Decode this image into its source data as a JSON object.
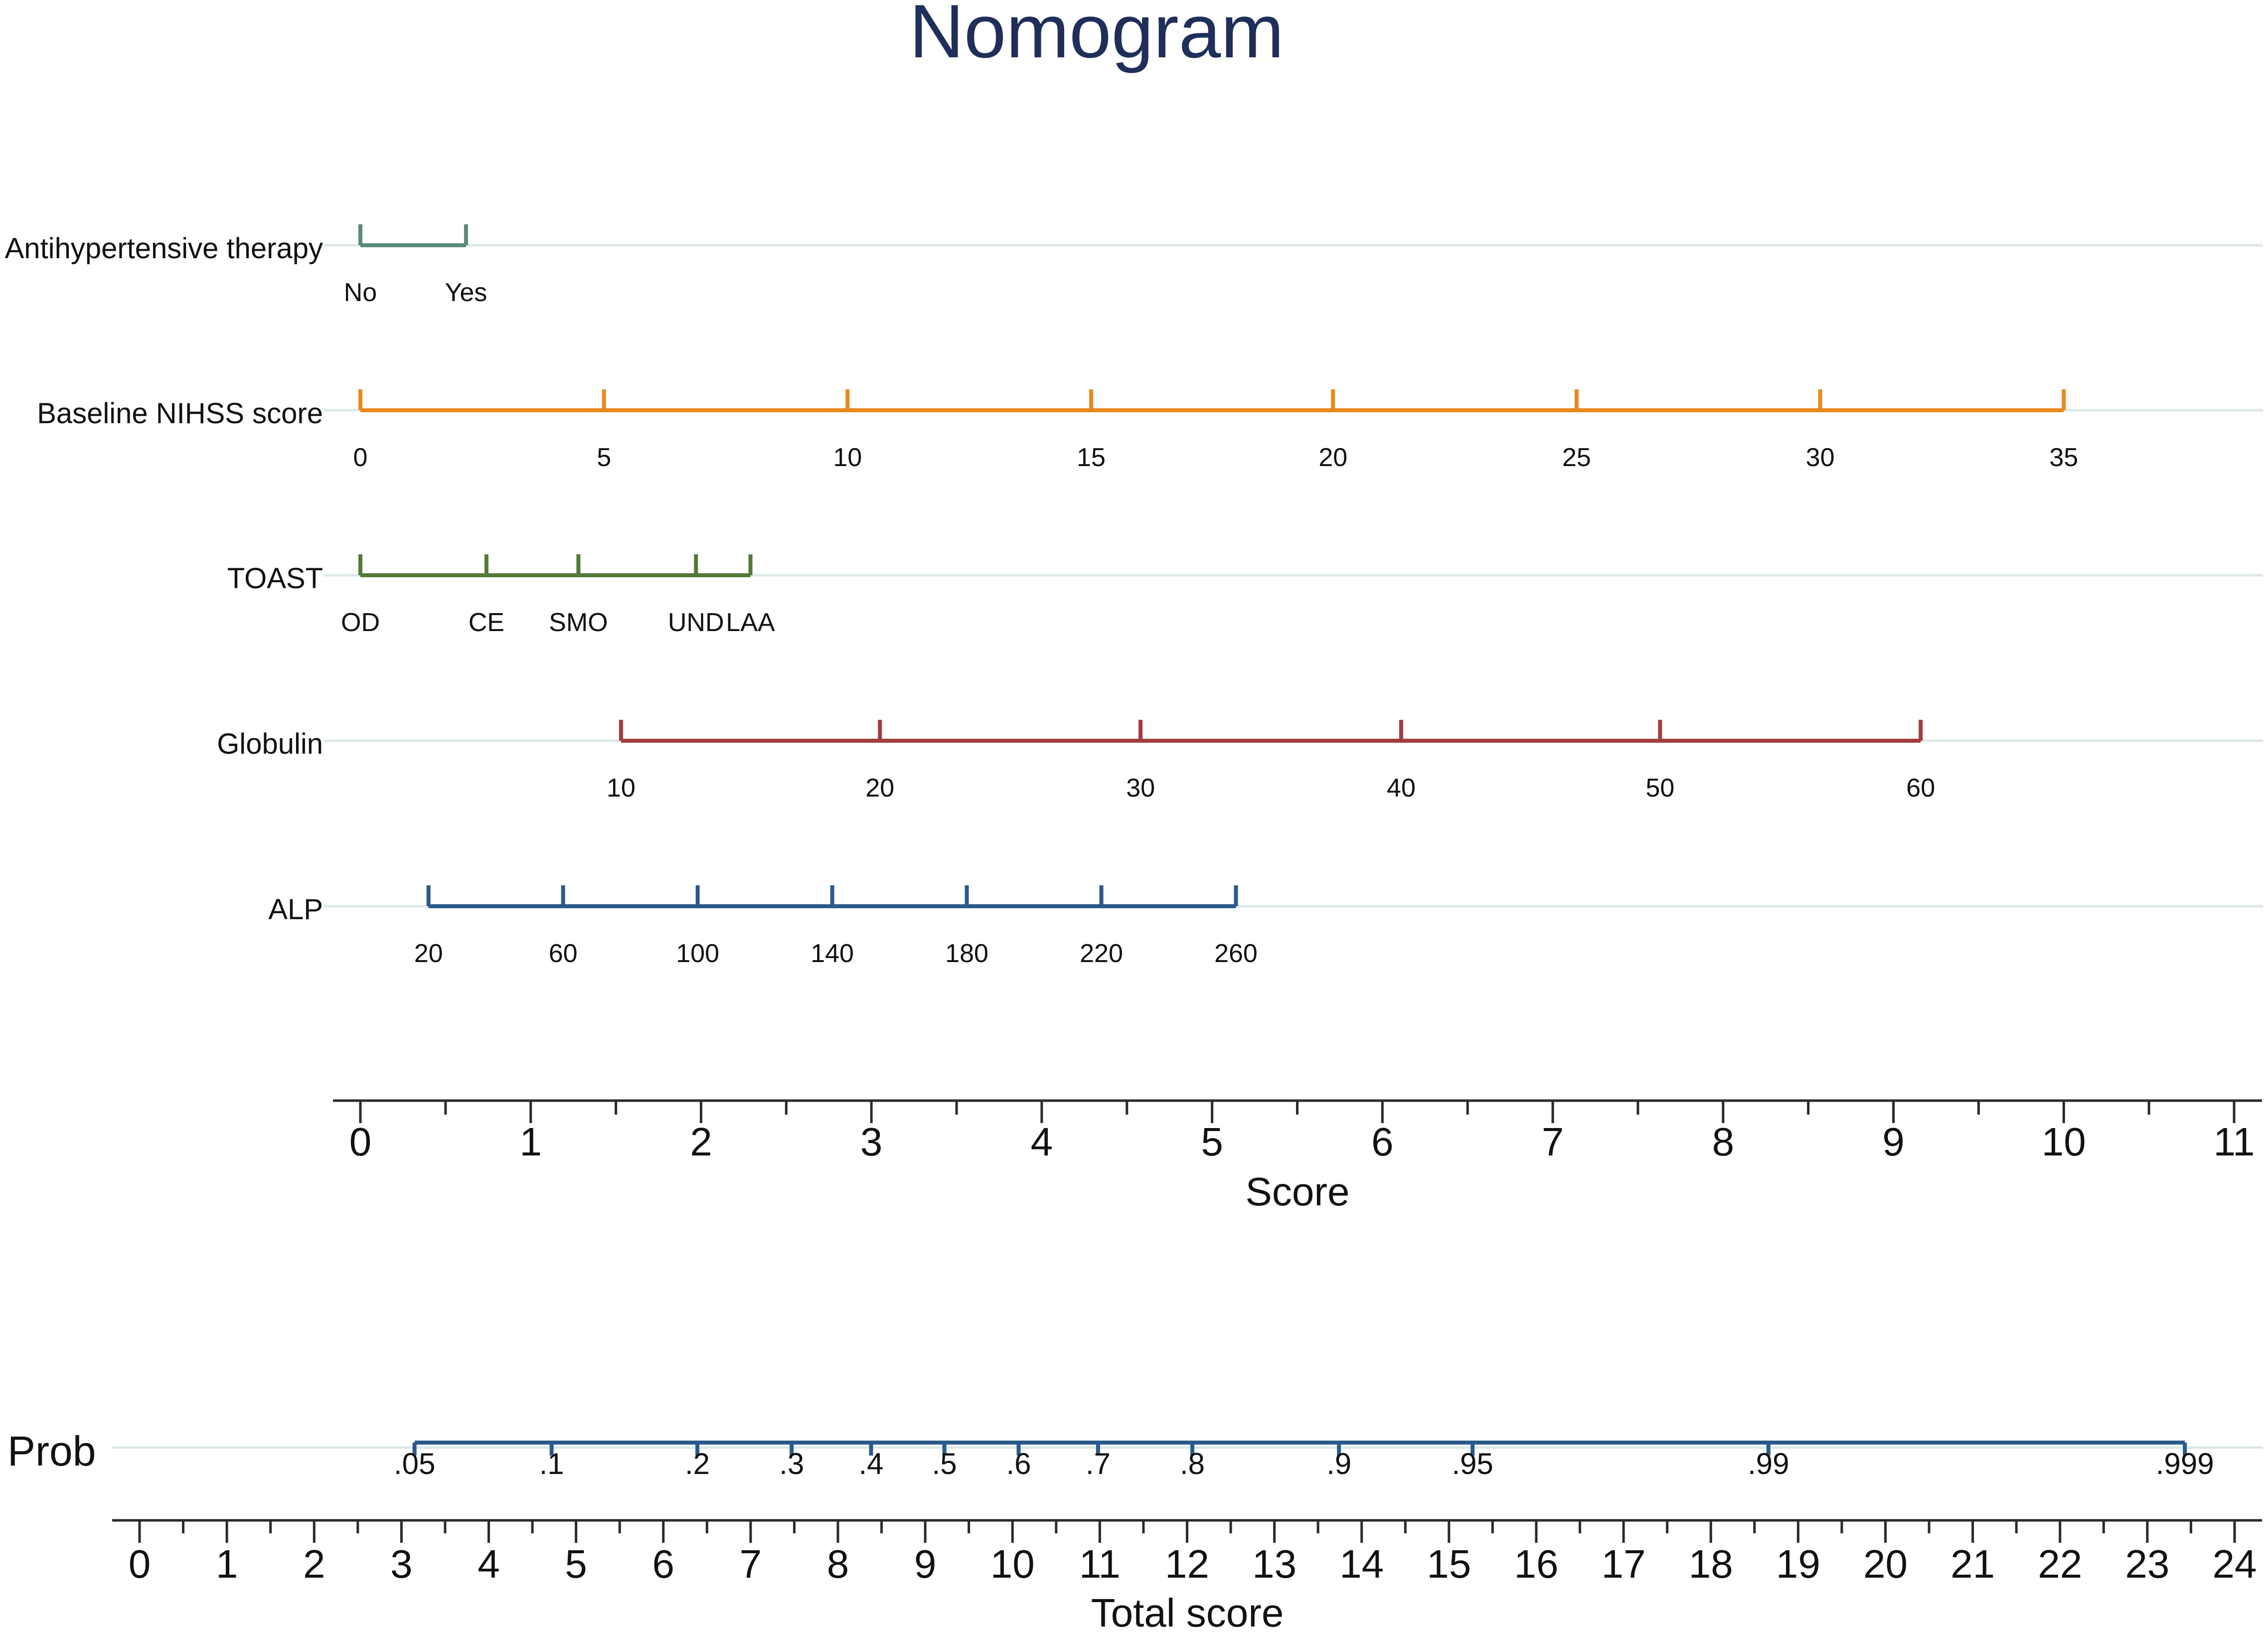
{
  "chart_data": {
    "type": "nomogram",
    "title": "Nomogram",
    "variables": [
      {
        "name": "Antihypertensive therapy",
        "color": "#5b8a7a",
        "ticks": [
          {
            "label": "No",
            "points": 0
          },
          {
            "label": "Yes",
            "points": 0.62
          }
        ]
      },
      {
        "name": "Baseline NIHSS score",
        "color": "#e8891f",
        "ticks": [
          {
            "label": "0",
            "points": 0
          },
          {
            "label": "5",
            "points": 1.43
          },
          {
            "label": "10",
            "points": 2.86
          },
          {
            "label": "15",
            "points": 4.29
          },
          {
            "label": "20",
            "points": 5.71
          },
          {
            "label": "25",
            "points": 7.14
          },
          {
            "label": "30",
            "points": 8.57
          },
          {
            "label": "35",
            "points": 10.0
          }
        ]
      },
      {
        "name": "TOAST",
        "color": "#537a36",
        "ticks": [
          {
            "label": "OD",
            "points": 0
          },
          {
            "label": "CE",
            "points": 0.74
          },
          {
            "label": "SMO",
            "points": 1.28
          },
          {
            "label": "UND",
            "points": 1.97
          },
          {
            "label": "LAA",
            "points": 2.29
          }
        ]
      },
      {
        "name": "Globulin",
        "color": "#a23c3f",
        "ticks": [
          {
            "label": "10",
            "points": 1.53
          },
          {
            "label": "20",
            "points": 3.05
          },
          {
            "label": "30",
            "points": 4.58
          },
          {
            "label": "40",
            "points": 6.11
          },
          {
            "label": "50",
            "points": 7.63
          },
          {
            "label": "60",
            "points": 9.16
          }
        ]
      },
      {
        "name": "ALP",
        "color": "#2b5a8a",
        "ticks": [
          {
            "label": "20",
            "points": 0.4
          },
          {
            "label": "60",
            "points": 1.19
          },
          {
            "label": "100",
            "points": 1.98
          },
          {
            "label": "140",
            "points": 2.77
          },
          {
            "label": "180",
            "points": 3.56
          },
          {
            "label": "220",
            "points": 4.35
          },
          {
            "label": "260",
            "points": 5.14
          }
        ]
      }
    ],
    "score_axis": {
      "xlabel": "Score",
      "range": [
        0,
        11
      ],
      "major_ticks": [
        "0",
        "1",
        "2",
        "3",
        "4",
        "5",
        "6",
        "7",
        "8",
        "9",
        "10",
        "11"
      ]
    },
    "probability": {
      "name": "Prob",
      "color": "#2b5a8a",
      "ticks": [
        {
          "label": ".05",
          "total": 3.15
        },
        {
          "label": ".1",
          "total": 4.72
        },
        {
          "label": ".2",
          "total": 6.39
        },
        {
          "label": ".3",
          "total": 7.47
        },
        {
          "label": ".4",
          "total": 8.38
        },
        {
          "label": ".5",
          "total": 9.22
        },
        {
          "label": ".6",
          "total": 10.07
        },
        {
          "label": ".7",
          "total": 10.98
        },
        {
          "label": ".8",
          "total": 12.06
        },
        {
          "label": ".9",
          "total": 13.74
        },
        {
          "label": ".95",
          "total": 15.27
        },
        {
          "label": ".99",
          "total": 18.66
        },
        {
          "label": ".999",
          "total": 23.43
        }
      ]
    },
    "total_axis": {
      "xlabel": "Total score",
      "range": [
        0,
        24
      ],
      "major_ticks": [
        "0",
        "1",
        "2",
        "3",
        "4",
        "5",
        "6",
        "7",
        "8",
        "9",
        "10",
        "11",
        "12",
        "13",
        "14",
        "15",
        "16",
        "17",
        "18",
        "19",
        "20",
        "21",
        "22",
        "23",
        "24"
      ]
    },
    "colors": {
      "title": "#1f2f5a",
      "axis": "#2a2a2a",
      "text": "#111111",
      "baseline": "#dde8e8"
    }
  }
}
